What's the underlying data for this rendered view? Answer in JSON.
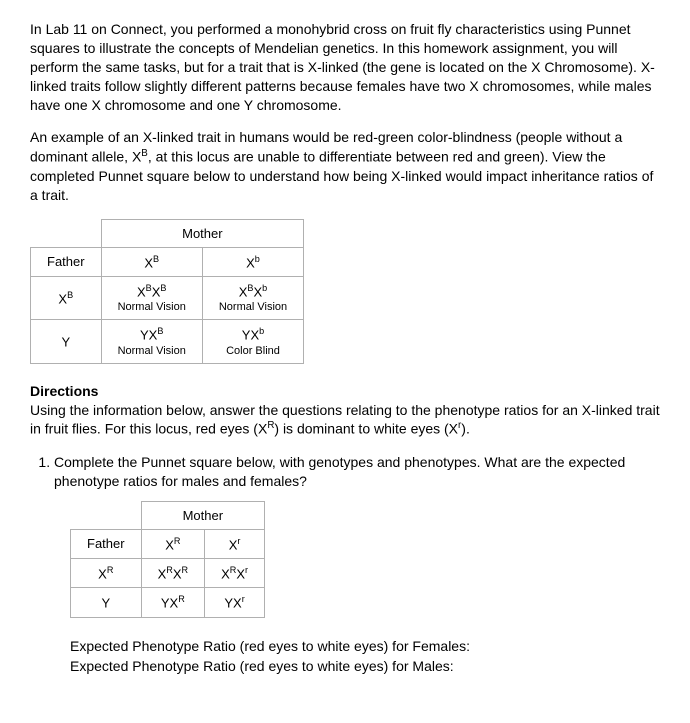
{
  "para1": "In Lab 11 on Connect, you performed a monohybrid cross on fruit fly characteristics using Punnet squares to illustrate the concepts of Mendelian genetics. In this homework assignment, you will perform the same tasks, but for a trait that is X-linked (the gene is located on the X Chromosome). X-linked traits follow slightly different patterns because females have two X chromosomes, while males have one X chromosome and one Y chromosome.",
  "para2_pre": "An example of an X-linked trait in humans would be red-green color-blindness (people without a dominant allele, X",
  "para2_sup": "B",
  "para2_post": ", at this locus are unable to differentiate between red and green). View the completed Punnet square below to understand how being X-linked would impact inheritance ratios of a trait.",
  "example_table": {
    "mother_label": "Mother",
    "father_label": "Father",
    "mother_alleles": [
      {
        "base": "X",
        "sup": "B"
      },
      {
        "base": "X",
        "sup": "b"
      }
    ],
    "father_rows": [
      {
        "allele": {
          "base": "X",
          "sup": "B"
        },
        "cells": [
          {
            "geno": [
              {
                "b": "X",
                "s": "B"
              },
              {
                "b": "X",
                "s": "B"
              }
            ],
            "pheno": "Normal Vision"
          },
          {
            "geno": [
              {
                "b": "X",
                "s": "B"
              },
              {
                "b": "X",
                "s": "b"
              }
            ],
            "pheno": "Normal Vision"
          }
        ]
      },
      {
        "allele": {
          "base": "Y",
          "sup": ""
        },
        "cells": [
          {
            "geno": [
              {
                "b": "Y",
                "s": ""
              },
              {
                "b": "X",
                "s": "B"
              }
            ],
            "pheno": "Normal Vision"
          },
          {
            "geno": [
              {
                "b": "Y",
                "s": ""
              },
              {
                "b": "X",
                "s": "b"
              }
            ],
            "pheno": "Color Blind"
          }
        ]
      }
    ]
  },
  "directions_title": "Directions",
  "directions_body_pre": "Using the information below, answer the questions relating to the phenotype ratios for an X-linked trait in fruit flies. For this locus, red eyes (X",
  "directions_sup1": "R",
  "directions_body_mid": ") is dominant to white eyes (X",
  "directions_sup2": "r",
  "directions_body_post": ").",
  "q1": "Complete the Punnet square below, with genotypes and phenotypes. What are the expected phenotype ratios for males and females?",
  "q1_table": {
    "mother_label": "Mother",
    "father_label": "Father",
    "mother_alleles": [
      {
        "base": "X",
        "sup": "R"
      },
      {
        "base": "X",
        "sup": "r"
      }
    ],
    "father_rows": [
      {
        "allele": {
          "base": "X",
          "sup": "R"
        },
        "cells": [
          {
            "geno": [
              {
                "b": "X",
                "s": "R"
              },
              {
                "b": "X",
                "s": "R"
              }
            ]
          },
          {
            "geno": [
              {
                "b": "X",
                "s": "R"
              },
              {
                "b": "X",
                "s": "r"
              }
            ]
          }
        ]
      },
      {
        "allele": {
          "base": "Y",
          "sup": ""
        },
        "cells": [
          {
            "geno": [
              {
                "b": "Y",
                "s": ""
              },
              {
                "b": "X",
                "s": "R"
              }
            ]
          },
          {
            "geno": [
              {
                "b": "Y",
                "s": ""
              },
              {
                "b": "X",
                "s": "r"
              }
            ]
          }
        ]
      }
    ]
  },
  "ratio_female": "Expected Phenotype Ratio (red eyes to white eyes) for Females:",
  "ratio_male": "Expected Phenotype Ratio (red eyes to white eyes) for Males:"
}
